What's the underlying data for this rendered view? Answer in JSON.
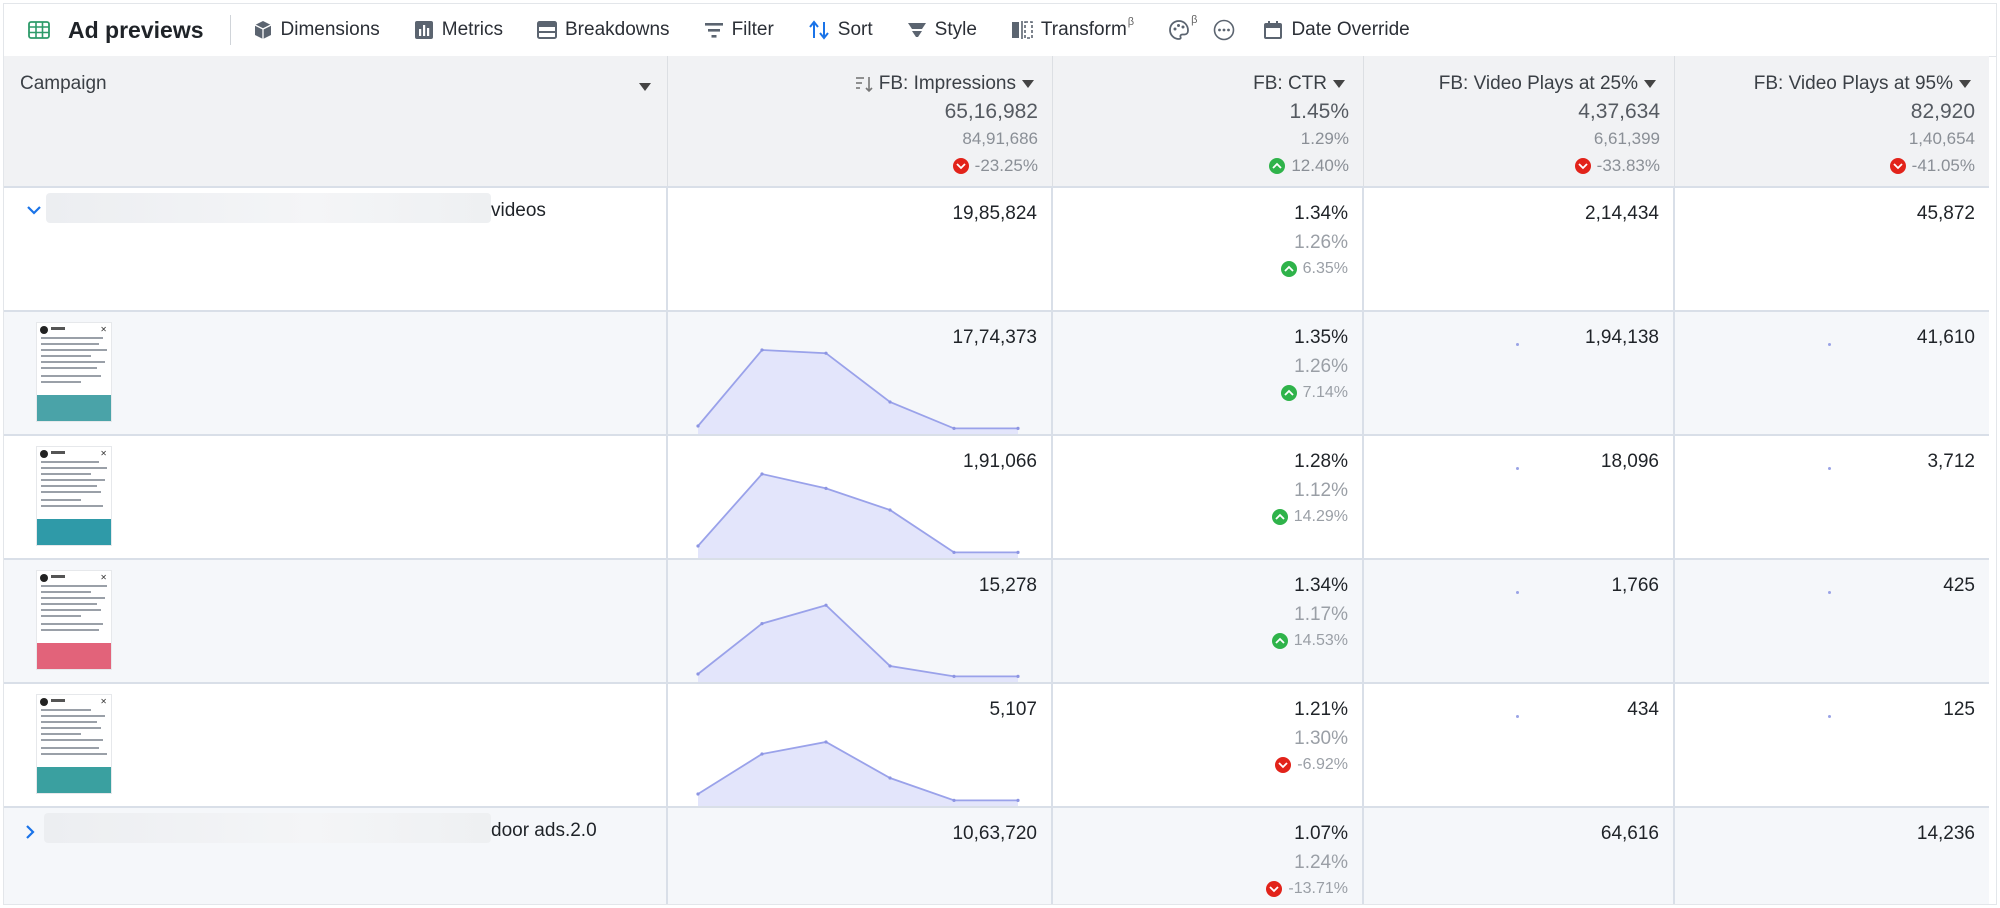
{
  "toolbar": {
    "title": "Ad previews",
    "items": [
      {
        "label": "Dimensions",
        "icon": "cube-icon"
      },
      {
        "label": "Metrics",
        "icon": "metrics-icon"
      },
      {
        "label": "Breakdowns",
        "icon": "breakdowns-icon"
      },
      {
        "label": "Filter",
        "icon": "filter-icon"
      },
      {
        "label": "Sort",
        "icon": "sort-icon"
      },
      {
        "label": "Style",
        "icon": "style-icon"
      },
      {
        "label": "Transform",
        "icon": "transform-icon",
        "sup": "β"
      },
      {
        "label": "",
        "icon": "palette-icon",
        "sup": "β"
      },
      {
        "label": "",
        "icon": "more-icon"
      },
      {
        "label": "Date Override",
        "icon": "calendar-icon"
      }
    ]
  },
  "header": {
    "campaign": "Campaign",
    "columns": [
      {
        "name": "FB: Impressions",
        "value": "65,16,982",
        "compare": "84,91,686",
        "change": "-23.25%",
        "dir": "down"
      },
      {
        "name": "FB: CTR",
        "value": "1.45%",
        "compare": "1.29%",
        "change": "12.40%",
        "dir": "up"
      },
      {
        "name": "FB: Video Plays at 25%",
        "value": "4,37,634",
        "compare": "6,61,399",
        "change": "-33.83%",
        "dir": "down"
      },
      {
        "name": "FB: Video Plays at 95%",
        "value": "82,920",
        "compare": "1,40,654",
        "change": "-41.05%",
        "dir": "down"
      }
    ]
  },
  "groups": [
    {
      "name_suffix": "videos",
      "impressions": "19,85,824",
      "ctr": "1.34%",
      "ctr_prev": "1.26%",
      "ctr_change": "6.35%",
      "ctr_dir": "up",
      "plays25": "2,14,434",
      "plays95": "45,872"
    },
    {
      "name_suffix": "door ads.2.0",
      "impressions": "10,63,720",
      "ctr": "1.07%",
      "ctr_prev": "1.24%",
      "ctr_change": "-13.71%",
      "ctr_dir": "down",
      "plays25": "64,616",
      "plays95": "14,236"
    }
  ],
  "ads": [
    {
      "impressions": "17,74,373",
      "ctr": "1.35%",
      "ctr_prev": "1.26%",
      "ctr_change": "7.14%",
      "ctr_dir": "up",
      "plays25": "1,94,138",
      "plays95": "41,610",
      "thumb_color": "#4aa3a8",
      "trend": [
        0.05,
        1.0,
        0.96,
        0.35,
        0.02,
        0.02
      ]
    },
    {
      "impressions": "1,91,066",
      "ctr": "1.28%",
      "ctr_prev": "1.12%",
      "ctr_change": "14.29%",
      "ctr_dir": "up",
      "plays25": "18,096",
      "plays95": "3,712",
      "thumb_color": "#2f9aa8",
      "trend": [
        0.1,
        1.0,
        0.82,
        0.55,
        0.02,
        0.02
      ]
    },
    {
      "impressions": "15,278",
      "ctr": "1.34%",
      "ctr_prev": "1.17%",
      "ctr_change": "14.53%",
      "ctr_dir": "up",
      "plays25": "1,766",
      "plays95": "425",
      "thumb_color": "#e2637a",
      "trend": [
        0.05,
        0.68,
        0.91,
        0.15,
        0.02,
        0.02
      ]
    },
    {
      "impressions": "5,107",
      "ctr": "1.21%",
      "ctr_prev": "1.30%",
      "ctr_change": "-6.92%",
      "ctr_dir": "down",
      "plays25": "434",
      "plays95": "125",
      "thumb_color": "#3aa0a0",
      "trend": [
        0.1,
        0.6,
        0.75,
        0.3,
        0.02,
        0.02
      ]
    }
  ]
}
